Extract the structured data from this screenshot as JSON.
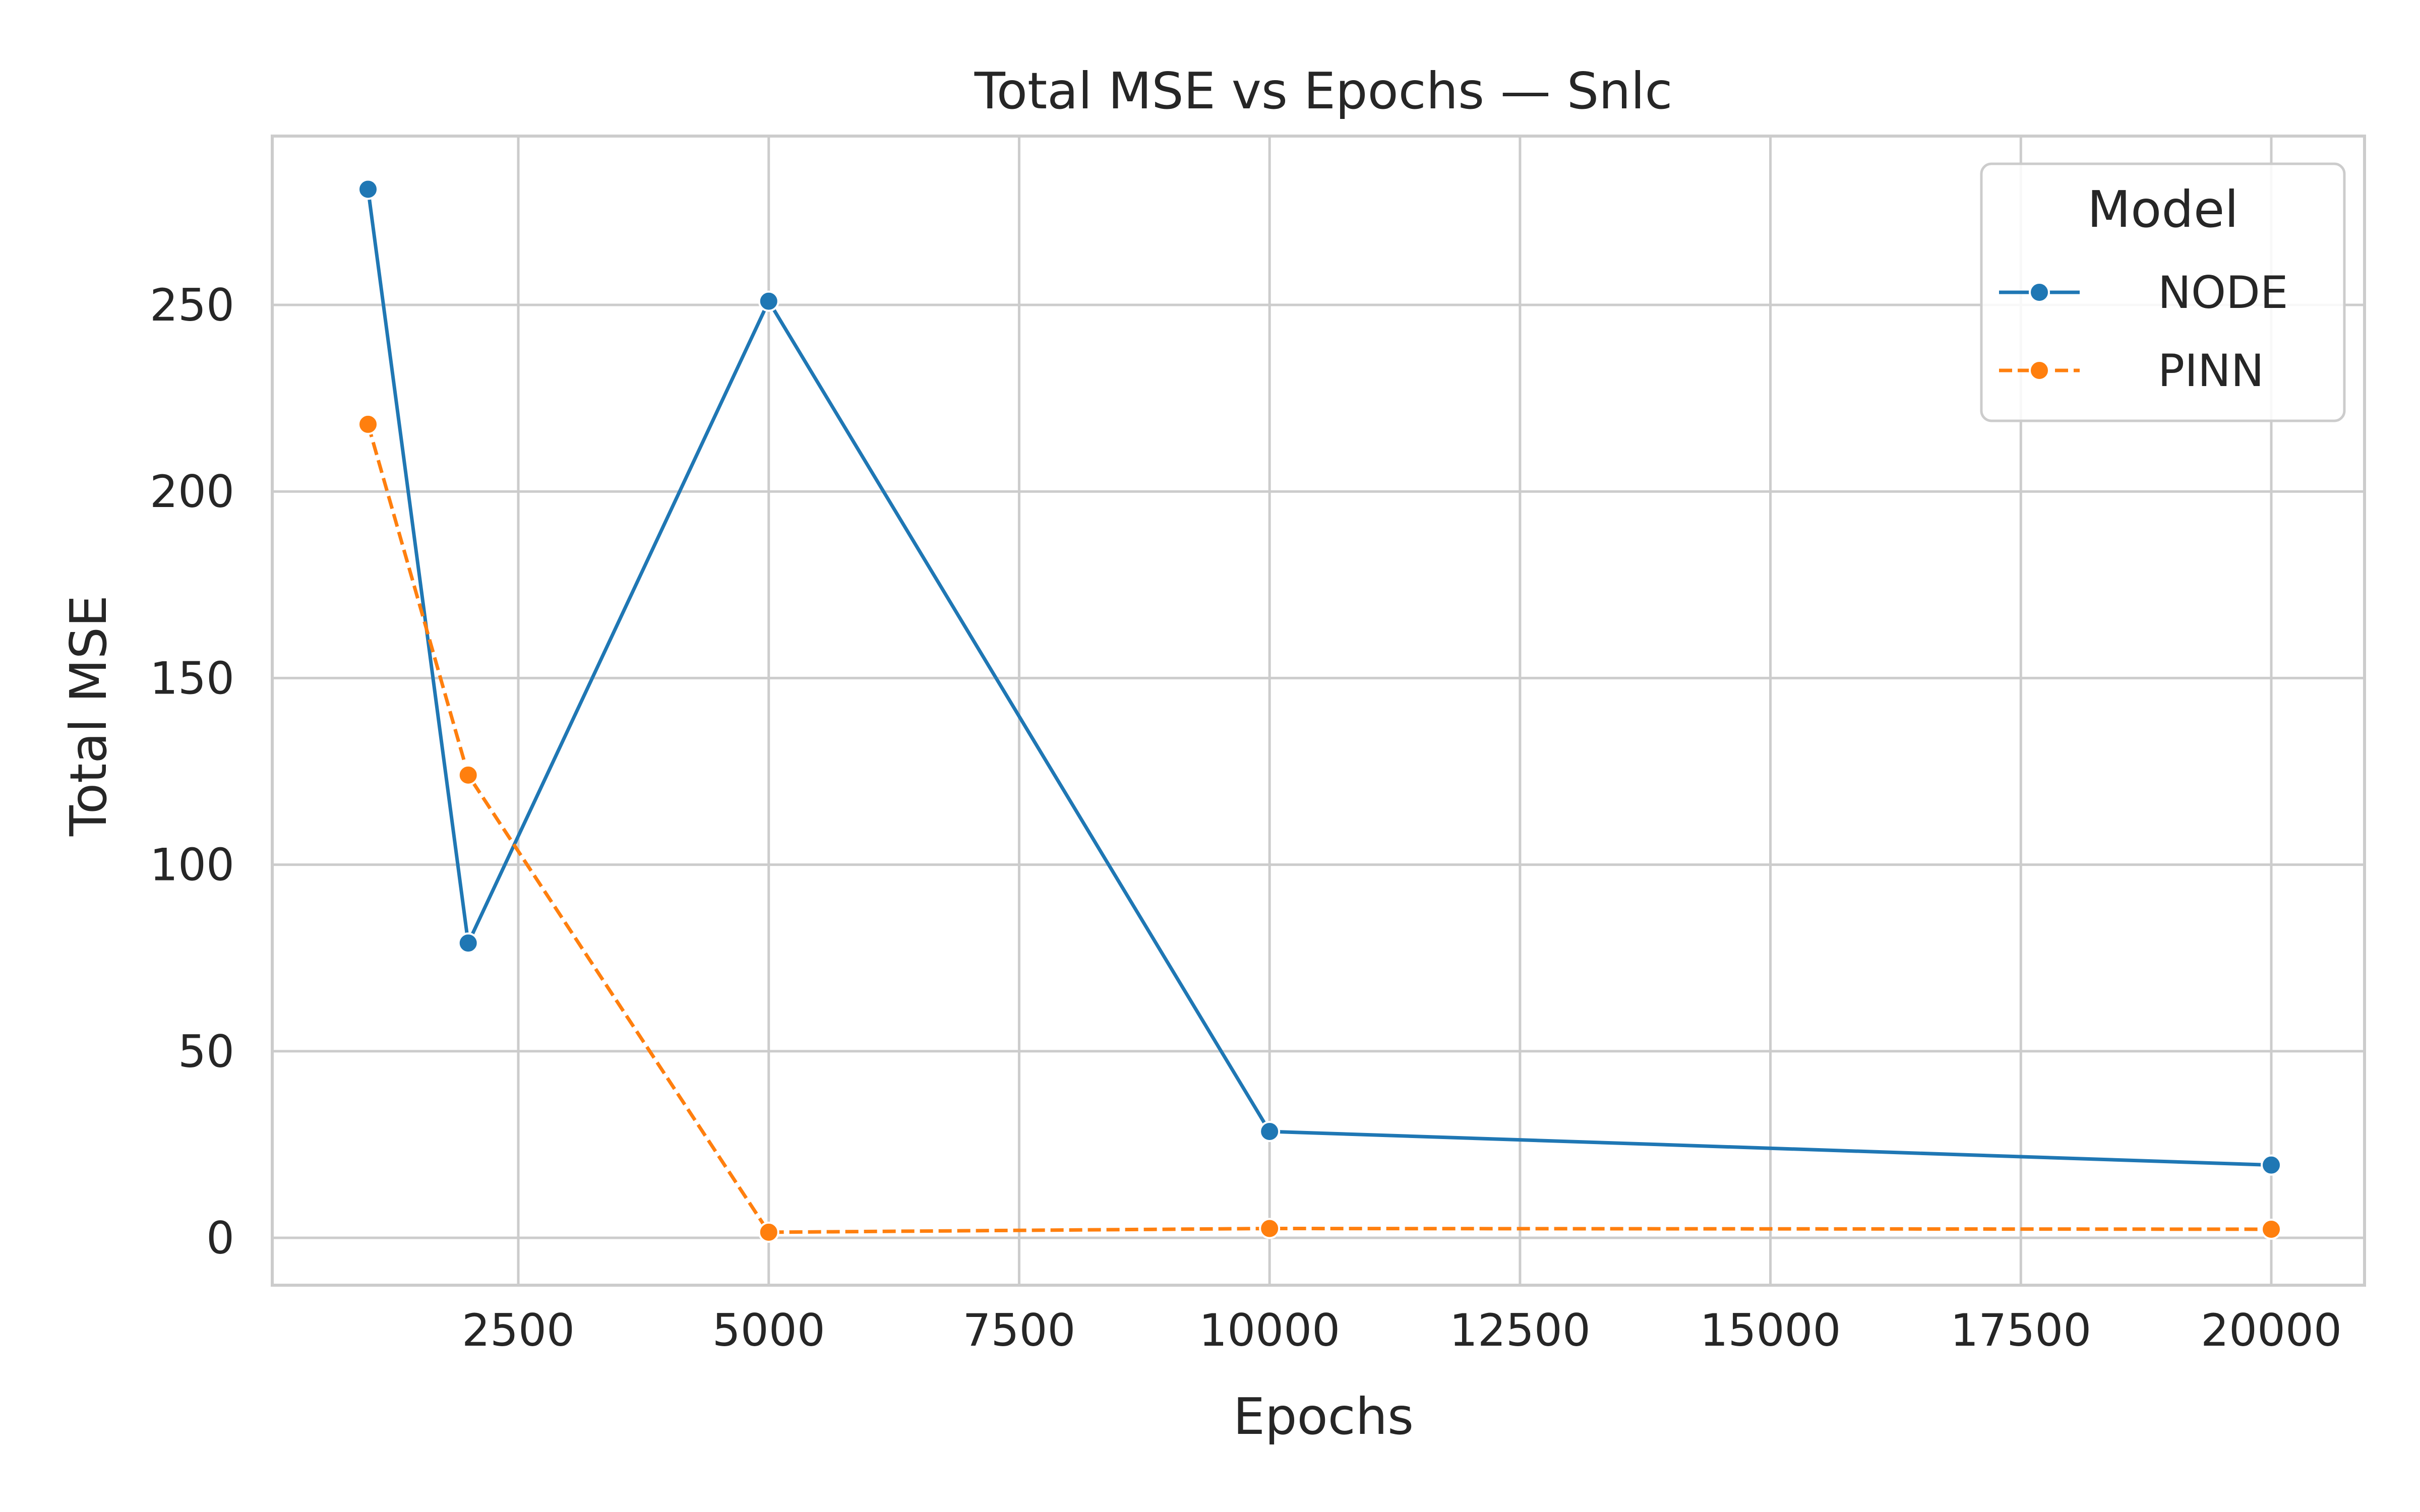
{
  "chart_data": {
    "type": "line",
    "title": "Total MSE vs Epochs — Snlc",
    "xlabel": "Epochs",
    "ylabel": "Total MSE",
    "xlim": [
      1000,
      20000
    ],
    "ylim": [
      -12,
      285
    ],
    "xticks": [
      2500,
      5000,
      7500,
      10000,
      12500,
      15000,
      17500,
      20000
    ],
    "yticks": [
      0,
      50,
      100,
      150,
      200,
      250
    ],
    "grid": true,
    "legend": {
      "title": "Model",
      "placement": "top-right"
    },
    "series": [
      {
        "name": "NODE",
        "color": "#1f77b4",
        "dash": "solid",
        "marker": "circle",
        "x": [
          1000,
          2000,
          5000,
          10000,
          20000
        ],
        "y": [
          281,
          79,
          251,
          28.5,
          19.5
        ]
      },
      {
        "name": "PINN",
        "color": "#ff7f0e",
        "dash": "dashed",
        "marker": "circle",
        "x": [
          1000,
          2000,
          5000,
          10000,
          20000
        ],
        "y": [
          218,
          124,
          1.5,
          2.5,
          2.3
        ]
      }
    ]
  }
}
